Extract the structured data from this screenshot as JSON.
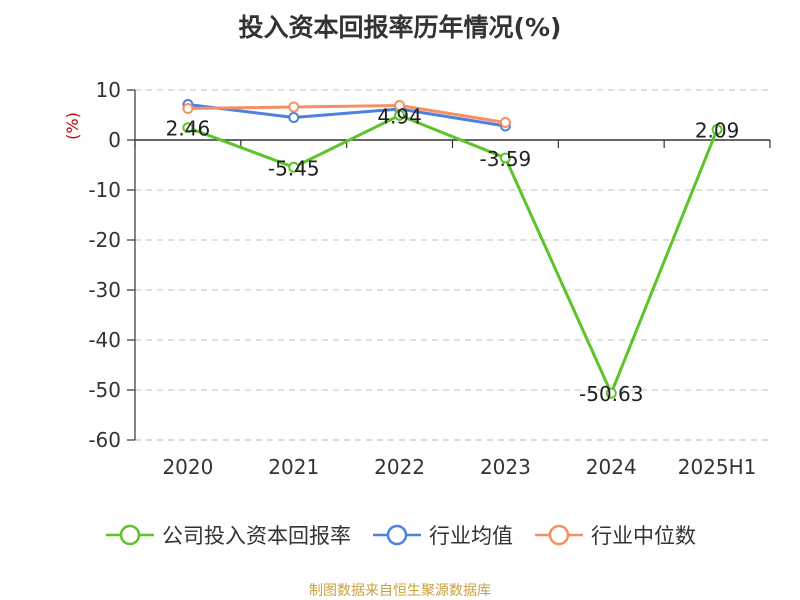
{
  "chart_data": {
    "type": "line",
    "title": "投入资本回报率历年情况(%)",
    "ylabel": "(%)",
    "xlabel": "",
    "categories": [
      "2020",
      "2021",
      "2022",
      "2023",
      "2024",
      "2025H1"
    ],
    "ylim": [
      -60,
      10
    ],
    "yticks": [
      10,
      0,
      -10,
      -20,
      -30,
      -40,
      -50,
      -60
    ],
    "grid": true,
    "legend_position": "bottom",
    "series": [
      {
        "name": "公司投入资本回报率",
        "color": "#5cc42a",
        "values": [
          2.46,
          -5.45,
          4.94,
          -3.59,
          -50.63,
          2.09
        ],
        "labels": [
          "2.46",
          "-5.45",
          "4.94",
          "-3.59",
          "-50.63",
          "2.09"
        ]
      },
      {
        "name": "行业均值",
        "color": "#4f80dd",
        "values": [
          7.1,
          4.5,
          6.2,
          2.8,
          null,
          null
        ]
      },
      {
        "name": "行业中位数",
        "color": "#f39064",
        "values": [
          6.3,
          6.6,
          6.9,
          3.5,
          null,
          null
        ]
      }
    ]
  },
  "source": "制图数据来自恒生聚源数据库"
}
